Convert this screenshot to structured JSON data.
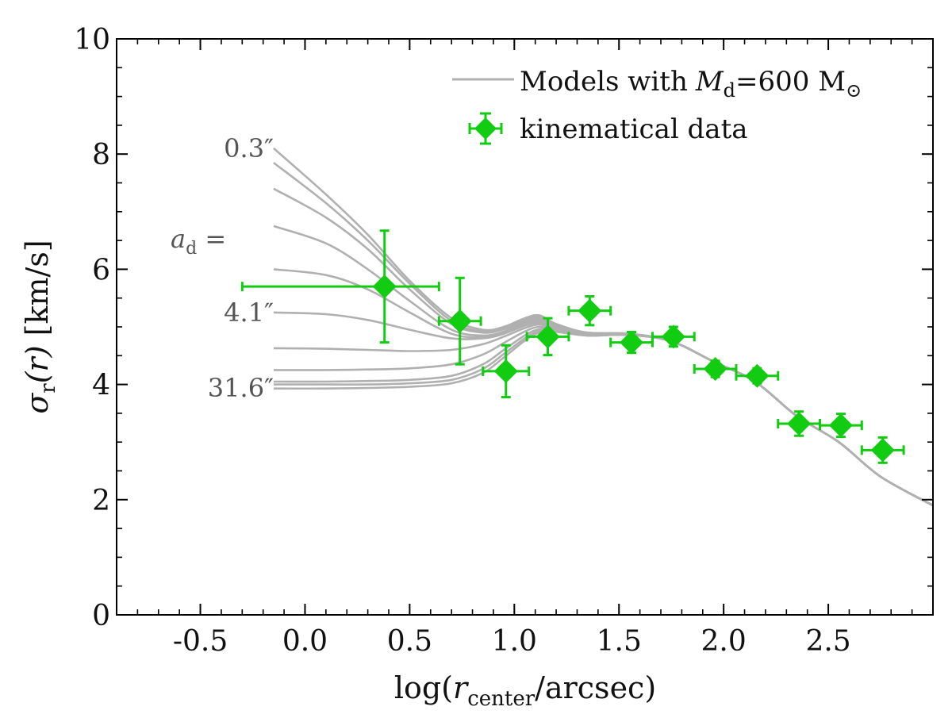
{
  "chart_data": {
    "type": "line",
    "title": "",
    "xlabel": "log(r_center/arcsec)",
    "xlabel_parts": {
      "prefix": "log(",
      "var": "r",
      "sub": "center",
      "suffix": "/arcsec)"
    },
    "ylabel": "σ_r(r) [km/s]",
    "ylabel_parts": {
      "sym": "σ",
      "sub": "r",
      "arg": "(r)",
      "unit": " [km/s]"
    },
    "xlim": [
      -0.9,
      3.0
    ],
    "ylim": [
      0,
      10
    ],
    "xticks": [
      -0.5,
      0.0,
      0.5,
      1.0,
      1.5,
      2.0,
      2.5
    ],
    "xtick_labels": [
      "-0.5",
      "0.0",
      "0.5",
      "1.0",
      "1.5",
      "2.0",
      "2.5"
    ],
    "yticks": [
      0,
      2,
      4,
      6,
      8,
      10
    ],
    "ytick_labels": [
      "0",
      "2",
      "4",
      "6",
      "8",
      "10"
    ],
    "legend": {
      "position": "top-right",
      "entries": [
        {
          "label": "Models with",
          "math": "M",
          "math_sub": "d",
          "rest": "=600 M",
          "sun": "⊙",
          "color": "#b0b0b0",
          "kind": "line"
        },
        {
          "label": "kinematical data",
          "color": "#11cc11",
          "kind": "errorbar-diamond"
        }
      ]
    },
    "curve_labels": {
      "top": "0.3″",
      "middle_prefix": "a",
      "middle_sub": "d",
      "middle_suffix": " =",
      "mid": "4.1″",
      "bottom": "31.6″"
    },
    "series": [
      {
        "name": "model 1",
        "color": "#b0b0b0",
        "x": [
          -0.15,
          0.1,
          0.3,
          0.5,
          0.7,
          0.85,
          0.95,
          1.05,
          1.12,
          1.2,
          1.35,
          1.55,
          1.75,
          1.95,
          2.15,
          2.35,
          2.55,
          2.75,
          3.0
        ],
        "y": [
          8.1,
          7.3,
          6.6,
          5.8,
          5.15,
          4.95,
          5.0,
          5.15,
          5.2,
          5.05,
          4.9,
          4.88,
          4.75,
          4.4,
          4.05,
          3.45,
          3.0,
          2.4,
          1.9
        ]
      },
      {
        "name": "model 2",
        "color": "#b0b0b0",
        "x": [
          -0.15,
          0.1,
          0.3,
          0.5,
          0.7,
          0.85,
          0.95,
          1.05,
          1.12,
          1.2,
          1.35,
          1.55,
          1.75,
          1.95,
          2.15,
          2.35,
          2.55,
          2.75,
          3.0
        ],
        "y": [
          7.85,
          7.15,
          6.5,
          5.75,
          5.1,
          4.92,
          4.98,
          5.12,
          5.18,
          5.03,
          4.9,
          4.88,
          4.75,
          4.4,
          4.05,
          3.45,
          3.0,
          2.4,
          1.9
        ]
      },
      {
        "name": "model 3",
        "color": "#b0b0b0",
        "x": [
          -0.15,
          0.1,
          0.3,
          0.5,
          0.7,
          0.85,
          0.95,
          1.05,
          1.12,
          1.2,
          1.35,
          1.55,
          1.75,
          1.95,
          2.15,
          2.35,
          2.55,
          2.75,
          3.0
        ],
        "y": [
          7.4,
          6.9,
          6.35,
          5.65,
          5.05,
          4.9,
          4.96,
          5.1,
          5.15,
          5.02,
          4.9,
          4.88,
          4.75,
          4.4,
          4.05,
          3.45,
          3.0,
          2.4,
          1.9
        ]
      },
      {
        "name": "model 4",
        "color": "#b0b0b0",
        "x": [
          -0.15,
          0.1,
          0.3,
          0.5,
          0.7,
          0.85,
          0.95,
          1.05,
          1.12,
          1.2,
          1.35,
          1.55,
          1.75,
          1.95,
          2.15,
          2.35,
          2.55,
          2.75,
          3.0
        ],
        "y": [
          6.75,
          6.45,
          6.0,
          5.45,
          4.95,
          4.85,
          4.92,
          5.07,
          5.13,
          5.0,
          4.88,
          4.87,
          4.75,
          4.4,
          4.05,
          3.45,
          3.0,
          2.4,
          1.9
        ]
      },
      {
        "name": "model 5",
        "color": "#b0b0b0",
        "x": [
          -0.15,
          0.1,
          0.3,
          0.5,
          0.7,
          0.85,
          0.95,
          1.05,
          1.12,
          1.2,
          1.35,
          1.55,
          1.75,
          1.95,
          2.15,
          2.35,
          2.55,
          2.75,
          3.0
        ],
        "y": [
          6.0,
          5.9,
          5.65,
          5.25,
          4.88,
          4.82,
          4.9,
          5.05,
          5.1,
          4.98,
          4.87,
          4.87,
          4.75,
          4.4,
          4.05,
          3.45,
          3.0,
          2.4,
          1.9
        ]
      },
      {
        "name": "model 6",
        "color": "#b0b0b0",
        "x": [
          -0.15,
          0.1,
          0.3,
          0.5,
          0.7,
          0.85,
          0.95,
          1.05,
          1.12,
          1.2,
          1.35,
          1.55,
          1.75,
          1.95,
          2.15,
          2.35,
          2.55,
          2.75,
          3.0
        ],
        "y": [
          5.25,
          5.22,
          5.12,
          4.95,
          4.8,
          4.8,
          4.88,
          5.02,
          5.07,
          4.97,
          4.87,
          4.87,
          4.75,
          4.4,
          4.05,
          3.45,
          3.0,
          2.4,
          1.9
        ]
      },
      {
        "name": "model 7",
        "color": "#b0b0b0",
        "x": [
          -0.15,
          0.1,
          0.3,
          0.5,
          0.7,
          0.85,
          0.95,
          1.05,
          1.12,
          1.2,
          1.35,
          1.55,
          1.75,
          1.95,
          2.15,
          2.35,
          2.55,
          2.75,
          3.0
        ],
        "y": [
          4.63,
          4.62,
          4.6,
          4.58,
          4.6,
          4.7,
          4.83,
          4.98,
          5.04,
          4.96,
          4.86,
          4.86,
          4.75,
          4.4,
          4.05,
          3.45,
          3.0,
          2.4,
          1.9
        ]
      },
      {
        "name": "model 8",
        "color": "#b0b0b0",
        "x": [
          -0.15,
          0.1,
          0.3,
          0.5,
          0.7,
          0.85,
          0.95,
          1.05,
          1.12,
          1.2,
          1.35,
          1.55,
          1.75,
          1.95,
          2.15,
          2.35,
          2.55,
          2.75,
          3.0
        ],
        "y": [
          4.25,
          4.25,
          4.26,
          4.28,
          4.35,
          4.52,
          4.72,
          4.92,
          5.0,
          4.94,
          4.86,
          4.86,
          4.75,
          4.4,
          4.05,
          3.45,
          3.0,
          2.4,
          1.9
        ]
      },
      {
        "name": "model 9",
        "color": "#b0b0b0",
        "x": [
          -0.15,
          0.1,
          0.3,
          0.5,
          0.7,
          0.85,
          0.95,
          1.05,
          1.12,
          1.2,
          1.35,
          1.55,
          1.75,
          1.95,
          2.15,
          2.35,
          2.55,
          2.75,
          3.0
        ],
        "y": [
          4.05,
          4.05,
          4.06,
          4.08,
          4.15,
          4.35,
          4.6,
          4.85,
          4.96,
          4.93,
          4.85,
          4.86,
          4.75,
          4.4,
          4.05,
          3.45,
          3.0,
          2.4,
          1.9
        ]
      },
      {
        "name": "model 10",
        "color": "#b0b0b0",
        "x": [
          -0.15,
          0.1,
          0.3,
          0.5,
          0.7,
          0.85,
          0.95,
          1.05,
          1.12,
          1.2,
          1.35,
          1.55,
          1.75,
          1.95,
          2.15,
          2.35,
          2.55,
          2.75,
          3.0
        ],
        "y": [
          4.0,
          4.0,
          4.0,
          4.02,
          4.08,
          4.27,
          4.53,
          4.8,
          4.93,
          4.92,
          4.85,
          4.86,
          4.75,
          4.4,
          4.05,
          3.45,
          3.0,
          2.4,
          1.9
        ]
      },
      {
        "name": "model 11",
        "color": "#b0b0b0",
        "x": [
          -0.15,
          0.1,
          0.3,
          0.5,
          0.7,
          0.85,
          0.95,
          1.05,
          1.12,
          1.2,
          1.35,
          1.55,
          1.75,
          1.95,
          2.15,
          2.35,
          2.55,
          2.75,
          3.0
        ],
        "y": [
          3.93,
          3.93,
          3.94,
          3.96,
          4.02,
          4.2,
          4.47,
          4.76,
          4.9,
          4.91,
          4.85,
          4.86,
          4.75,
          4.4,
          4.05,
          3.45,
          3.0,
          2.4,
          1.9
        ]
      }
    ],
    "points": {
      "name": "kinematical data",
      "color": "#11cc11",
      "data": [
        {
          "x": 0.38,
          "y": 5.7,
          "xerr_lo": 0.68,
          "xerr_hi": 0.26,
          "yerr": 0.97
        },
        {
          "x": 0.74,
          "y": 5.1,
          "xerr_lo": 0.1,
          "xerr_hi": 0.1,
          "yerr": 0.75
        },
        {
          "x": 0.96,
          "y": 4.23,
          "xerr_lo": 0.11,
          "xerr_hi": 0.11,
          "yerr": 0.45
        },
        {
          "x": 1.16,
          "y": 4.83,
          "xerr_lo": 0.1,
          "xerr_hi": 0.1,
          "yerr": 0.32
        },
        {
          "x": 1.36,
          "y": 5.28,
          "xerr_lo": 0.1,
          "xerr_hi": 0.1,
          "yerr": 0.25
        },
        {
          "x": 1.56,
          "y": 4.73,
          "xerr_lo": 0.1,
          "xerr_hi": 0.1,
          "yerr": 0.18
        },
        {
          "x": 1.76,
          "y": 4.83,
          "xerr_lo": 0.1,
          "xerr_hi": 0.1,
          "yerr": 0.17
        },
        {
          "x": 1.96,
          "y": 4.27,
          "xerr_lo": 0.1,
          "xerr_hi": 0.1,
          "yerr": 0.14
        },
        {
          "x": 2.16,
          "y": 4.15,
          "xerr_lo": 0.1,
          "xerr_hi": 0.1,
          "yerr": 0.13
        },
        {
          "x": 2.36,
          "y": 3.32,
          "xerr_lo": 0.1,
          "xerr_hi": 0.1,
          "yerr": 0.21
        },
        {
          "x": 2.56,
          "y": 3.29,
          "xerr_lo": 0.1,
          "xerr_hi": 0.1,
          "yerr": 0.2
        },
        {
          "x": 2.76,
          "y": 2.86,
          "xerr_lo": 0.1,
          "xerr_hi": 0.1,
          "yerr": 0.22
        }
      ]
    }
  }
}
